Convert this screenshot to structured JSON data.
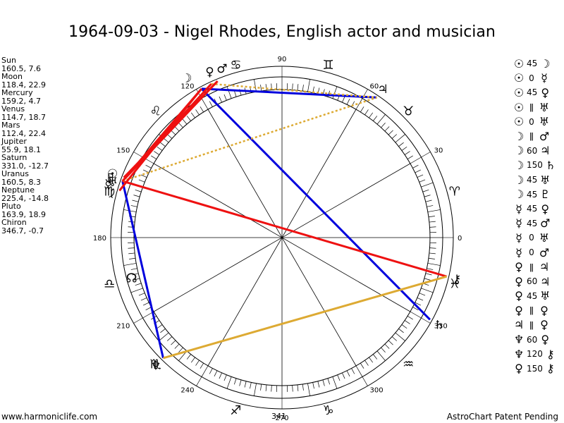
{
  "title": "1964-09-03 - Nigel Rhodes, English actor and musician",
  "planets": [
    {
      "name": "Sun",
      "glyph": "☉",
      "values": "160.5, 7.6",
      "longitude": 160.5
    },
    {
      "name": "Moon",
      "glyph": "☽",
      "values": "118.4, 22.9",
      "longitude": 118.4
    },
    {
      "name": "Mercury",
      "glyph": "☿",
      "values": "159.2, 4.7",
      "longitude": 159.2
    },
    {
      "name": "Venus",
      "glyph": "♀",
      "values": "114.7, 18.7",
      "longitude": 114.7
    },
    {
      "name": "Mars",
      "glyph": "♂",
      "values": "112.4, 22.4",
      "longitude": 112.4
    },
    {
      "name": "Jupiter",
      "glyph": "♃",
      "values": "55.9, 18.1",
      "longitude": 55.9
    },
    {
      "name": "Saturn",
      "glyph": "♄",
      "values": "331.0, -12.7",
      "longitude": 331.0
    },
    {
      "name": "Uranus",
      "glyph": "♅",
      "values": "160.5, 8.3",
      "longitude": 160.5
    },
    {
      "name": "Neptune",
      "glyph": "♆",
      "values": "225.4, -14.8",
      "longitude": 225.4
    },
    {
      "name": "Pluto",
      "glyph": "♇",
      "values": "163.9, 18.9",
      "longitude": 163.9
    },
    {
      "name": "Chiron",
      "glyph": "⚷",
      "values": "346.7, -0.7",
      "longitude": 346.7
    }
  ],
  "zodiac": [
    {
      "glyph": "♈",
      "longitude": 15
    },
    {
      "glyph": "♉",
      "longitude": 45
    },
    {
      "glyph": "♊",
      "longitude": 75
    },
    {
      "glyph": "♋",
      "longitude": 105
    },
    {
      "glyph": "♌",
      "longitude": 135
    },
    {
      "glyph": "♍",
      "longitude": 165
    },
    {
      "glyph": "♎",
      "longitude": 195
    },
    {
      "glyph": "♏",
      "longitude": 225
    },
    {
      "glyph": "♐",
      "longitude": 255
    },
    {
      "glyph": "♑",
      "longitude": 285
    },
    {
      "glyph": "♒",
      "longitude": 315
    },
    {
      "glyph": "♓",
      "longitude": 345
    }
  ],
  "node": {
    "glyph": "☊",
    "longitude": 195
  },
  "degree_labels": [
    "0",
    "30",
    "60",
    "90",
    "120",
    "150",
    "180",
    "210",
    "240",
    "270",
    "300",
    "330"
  ],
  "aspects": [
    {
      "p1": "☉",
      "angle": "45",
      "p2": "☽"
    },
    {
      "p1": "☉",
      "angle": "0",
      "p2": "☿"
    },
    {
      "p1": "☉",
      "angle": "45",
      "p2": "♀"
    },
    {
      "p1": "☉",
      "angle": "ǁ",
      "p2": "♅"
    },
    {
      "p1": "☉",
      "angle": "0",
      "p2": "♅"
    },
    {
      "p1": "☽",
      "angle": "ǁ",
      "p2": "♂"
    },
    {
      "p1": "☽",
      "angle": "60",
      "p2": "♃"
    },
    {
      "p1": "☽",
      "angle": "150",
      "p2": "♄"
    },
    {
      "p1": "☽",
      "angle": "45",
      "p2": "♅"
    },
    {
      "p1": "☽",
      "angle": "45",
      "p2": "♇"
    },
    {
      "p1": "☿",
      "angle": "45",
      "p2": "♀"
    },
    {
      "p1": "☿",
      "angle": "45",
      "p2": "♂"
    },
    {
      "p1": "☿",
      "angle": "0",
      "p2": "♅"
    },
    {
      "p1": "☿",
      "angle": "0",
      "p2": "♂"
    },
    {
      "p1": "♀",
      "angle": "ǁ",
      "p2": "♃"
    },
    {
      "p1": "♀",
      "angle": "60",
      "p2": "♃"
    },
    {
      "p1": "♀",
      "angle": "45",
      "p2": "♅"
    },
    {
      "p1": "♀",
      "angle": "ǁ",
      "p2": "♀"
    },
    {
      "p1": "♃",
      "angle": "ǁ",
      "p2": "♀"
    },
    {
      "p1": "♆",
      "angle": "60",
      "p2": "♀"
    },
    {
      "p1": "♆",
      "angle": "120",
      "p2": "⚷"
    },
    {
      "p1": "♀",
      "angle": "150",
      "p2": "⚷"
    }
  ],
  "aspect_lines": [
    {
      "from": 118.4,
      "to": 55.9,
      "color": "#0000dd"
    },
    {
      "from": 118.4,
      "to": 331.0,
      "color": "#0000dd"
    },
    {
      "from": 160.5,
      "to": 225.4,
      "color": "#0000dd"
    },
    {
      "from": 160.5,
      "to": 346.7,
      "color": "#ee1111"
    },
    {
      "from": 225.4,
      "to": 346.7,
      "color": "#ddaa33"
    },
    {
      "from": 160.5,
      "to": 55.9,
      "color": "#ddaa33",
      "dotted": true
    },
    {
      "from": 114.7,
      "to": 55.9,
      "color": "#ddaa33",
      "dotted": true
    },
    {
      "from": 112.4,
      "to": 160.5,
      "color": "#ee1111"
    },
    {
      "from": 114.7,
      "to": 160.5,
      "color": "#ee1111"
    },
    {
      "from": 118.4,
      "to": 160.5,
      "color": "#ee1111"
    },
    {
      "from": 112.4,
      "to": 159.2,
      "color": "#ee1111"
    },
    {
      "from": 118.4,
      "to": 163.9,
      "color": "#ee1111"
    }
  ],
  "colors": {
    "hard": "#ee1111",
    "soft": "#0000dd",
    "minor": "#ddaa33"
  },
  "footer": {
    "website": "www.harmoniclife.com",
    "number": "341",
    "patent": "AstroChart Patent Pending"
  }
}
